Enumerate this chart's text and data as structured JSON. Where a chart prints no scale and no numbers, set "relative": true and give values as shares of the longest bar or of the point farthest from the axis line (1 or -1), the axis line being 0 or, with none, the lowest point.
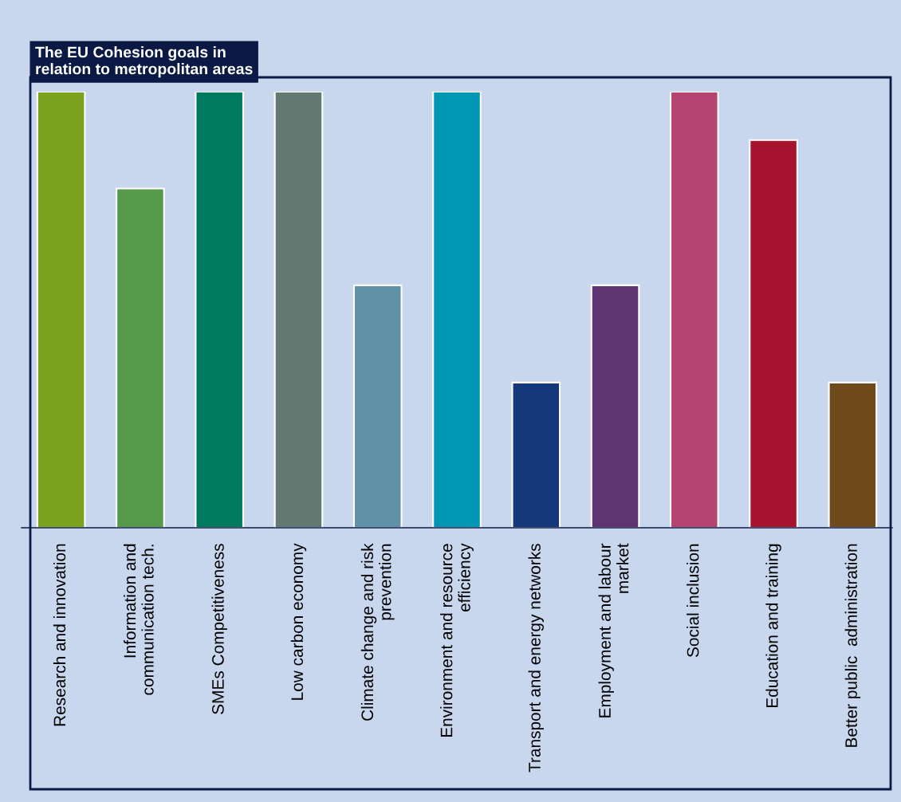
{
  "chart_data": {
    "type": "bar",
    "title": "The EU Cohesion goals in\nrelation to metropolitan areas",
    "relative": true,
    "categories": [
      "Research and innovation",
      "Information and\ncommunication tech.",
      "SMEs Competitiveness",
      "Low carbon economy",
      "Climate change and risk\nprevention",
      "Environment and resource\nefficiency",
      "Transport and energy networks",
      "Employment and labour\nmarket",
      "Social inclusion",
      "Education and training",
      "Better public  administration"
    ],
    "values": [
      1,
      0.778,
      1,
      1,
      0.556,
      1,
      0.333,
      0.556,
      1,
      0.889,
      0.333
    ],
    "colors": [
      "#7ba21c",
      "#55994a",
      "#007a5e",
      "#637a72",
      "#5f91a8",
      "#0097b5",
      "#15387a",
      "#5e3570",
      "#b64470",
      "#a8142f",
      "#6e4a1c"
    ],
    "grid": false,
    "legend": false
  }
}
